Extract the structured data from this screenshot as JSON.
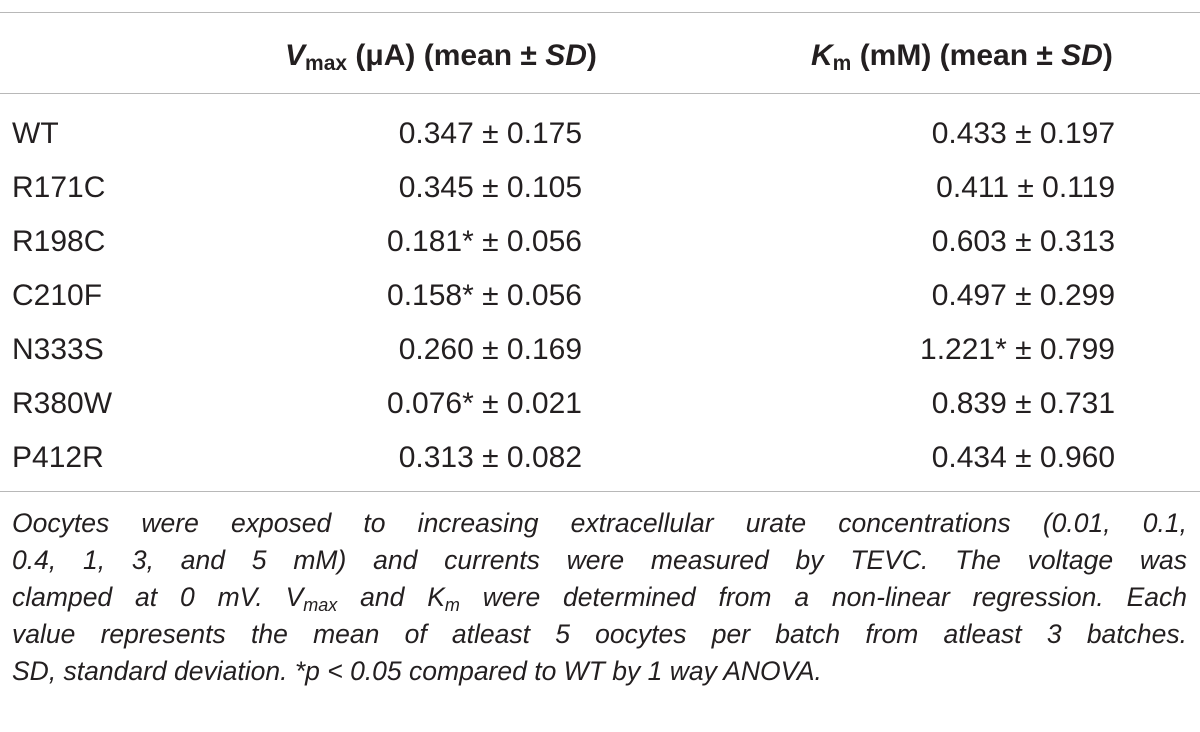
{
  "header": {
    "vmax": {
      "symbol": "V",
      "sub": "max",
      "unit": " (μA) (mean ± ",
      "sd": "SD",
      "close": ")"
    },
    "km": {
      "symbol": "K",
      "sub": "m",
      "unit": " (mM) (mean ± ",
      "sd": "SD",
      "close": ")"
    }
  },
  "rows": [
    {
      "name": "WT",
      "vmax": "0.347 ± 0.175",
      "km": "0.433 ± 0.197"
    },
    {
      "name": "R171C",
      "vmax": "0.345 ± 0.105",
      "km": "0.411 ± 0.119"
    },
    {
      "name": "R198C",
      "vmax": "0.181* ± 0.056",
      "km": "0.603 ± 0.313"
    },
    {
      "name": "C210F",
      "vmax": "0.158* ± 0.056",
      "km": "0.497 ± 0.299"
    },
    {
      "name": "N333S",
      "vmax": "0.260 ± 0.169",
      "km": "1.221* ± 0.799"
    },
    {
      "name": "R380W",
      "vmax": "0.076* ± 0.021",
      "km": "0.839 ± 0.731"
    },
    {
      "name": "P412R",
      "vmax": "0.313 ± 0.082",
      "km": "0.434 ± 0.960"
    }
  ],
  "footnote": {
    "line1": "Oocytes were exposed to increasing extracellular urate concentrations (0.01, 0.1,",
    "line2": "0.4, 1, 3, and 5 mM) and currents were measured by TEVC. The voltage was",
    "line3_a": "clamped at 0 mV. V",
    "line3_sub1": "max",
    "line3_b": " and K",
    "line3_sub2": "m",
    "line3_c": " were determined from a non-linear regression. Each",
    "line4": "value represents the mean of atleast 5 oocytes per batch from atleast 3 batches.",
    "line5": "SD, standard deviation. *p < 0.05 compared to WT by 1 way ANOVA."
  }
}
